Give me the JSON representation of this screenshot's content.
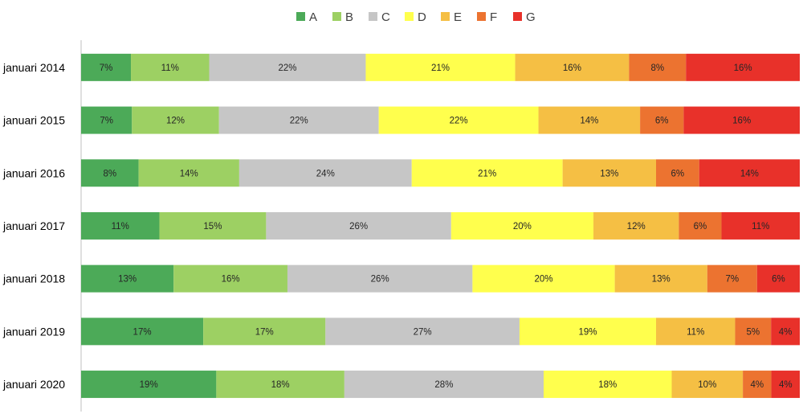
{
  "chart_data": {
    "type": "bar",
    "orientation": "horizontal",
    "stacked": "percent",
    "categories": [
      "januari 2014",
      "januari 2015",
      "januari 2016",
      "januari 2017",
      "januari 2018",
      "januari 2019",
      "januari 2020"
    ],
    "series": [
      {
        "name": "A",
        "color": "#4caa58",
        "values": [
          7,
          7,
          8,
          11,
          13,
          17,
          19
        ]
      },
      {
        "name": "B",
        "color": "#9dd063",
        "values": [
          11,
          12,
          14,
          15,
          16,
          17,
          18
        ]
      },
      {
        "name": "C",
        "color": "#c6c6c6",
        "values": [
          22,
          22,
          24,
          26,
          26,
          27,
          28
        ]
      },
      {
        "name": "D",
        "color": "#ffff4d",
        "values": [
          21,
          22,
          21,
          20,
          20,
          19,
          18
        ]
      },
      {
        "name": "E",
        "color": "#f5bf44",
        "values": [
          16,
          14,
          13,
          12,
          13,
          11,
          10
        ]
      },
      {
        "name": "F",
        "color": "#ec7330",
        "values": [
          8,
          6,
          6,
          6,
          7,
          5,
          4
        ]
      },
      {
        "name": "G",
        "color": "#e8312a",
        "values": [
          16,
          16,
          14,
          11,
          6,
          4,
          4
        ]
      }
    ],
    "value_suffix": "%",
    "legend_position": "top",
    "grid": false
  }
}
